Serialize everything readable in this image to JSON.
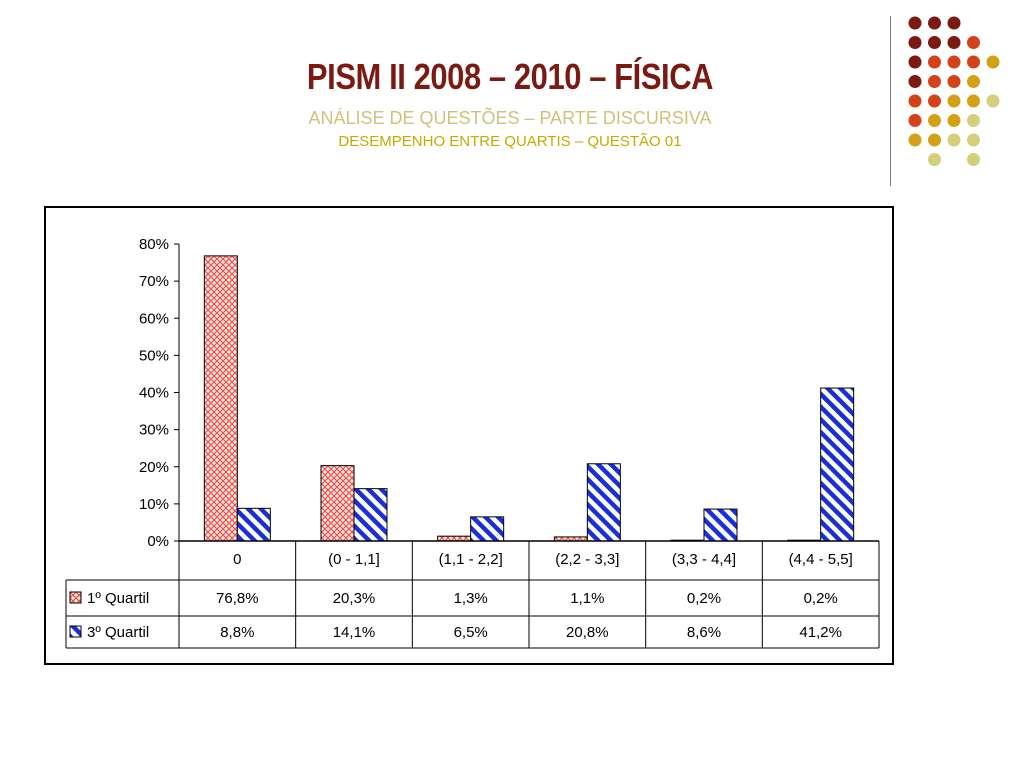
{
  "header": {
    "title": "PISM II 2008 – 2010 – FÍSICA",
    "subtitle1": "ANÁLISE DE QUESTÕES – PARTE DISCURSIVA",
    "subtitle2": "DESEMPENHO ENTRE QUARTIS – QUESTÃO 01"
  },
  "colors": {
    "title": "#7b1a12",
    "subtitle1": "#cfc27a",
    "subtitle2": "#c9a800",
    "series1": "#e05a50",
    "series2": "#1a2fd6",
    "dots": [
      "#7b1a12",
      "#d4421a",
      "#d4a017",
      "#d4cf7a"
    ]
  },
  "chart_data": {
    "type": "bar",
    "title": "",
    "xlabel": "",
    "ylabel": "",
    "ylim": [
      0,
      80
    ],
    "y_ticks": [
      "0%",
      "10%",
      "20%",
      "30%",
      "40%",
      "50%",
      "60%",
      "70%",
      "80%"
    ],
    "categories": [
      "0",
      "(0 - 1,1]",
      "(1,1 - 2,2]",
      "(2,2 - 3,3]",
      "(3,3 - 4,4]",
      "(4,4 - 5,5]"
    ],
    "series": [
      {
        "name": "1º Quartil",
        "pattern": "crosshatch",
        "values": [
          76.8,
          20.3,
          1.3,
          1.1,
          0.2,
          0.2
        ],
        "labels": [
          "76,8%",
          "20,3%",
          "1,3%",
          "1,1%",
          "0,2%",
          "0,2%"
        ]
      },
      {
        "name": "3º Quartil",
        "pattern": "diagonal-stripes",
        "values": [
          8.8,
          14.1,
          6.5,
          20.8,
          8.6,
          41.2
        ],
        "labels": [
          "8,8%",
          "14,1%",
          "6,5%",
          "20,8%",
          "8,6%",
          "41,2%"
        ]
      }
    ],
    "grid": false,
    "legend": "data-table"
  }
}
